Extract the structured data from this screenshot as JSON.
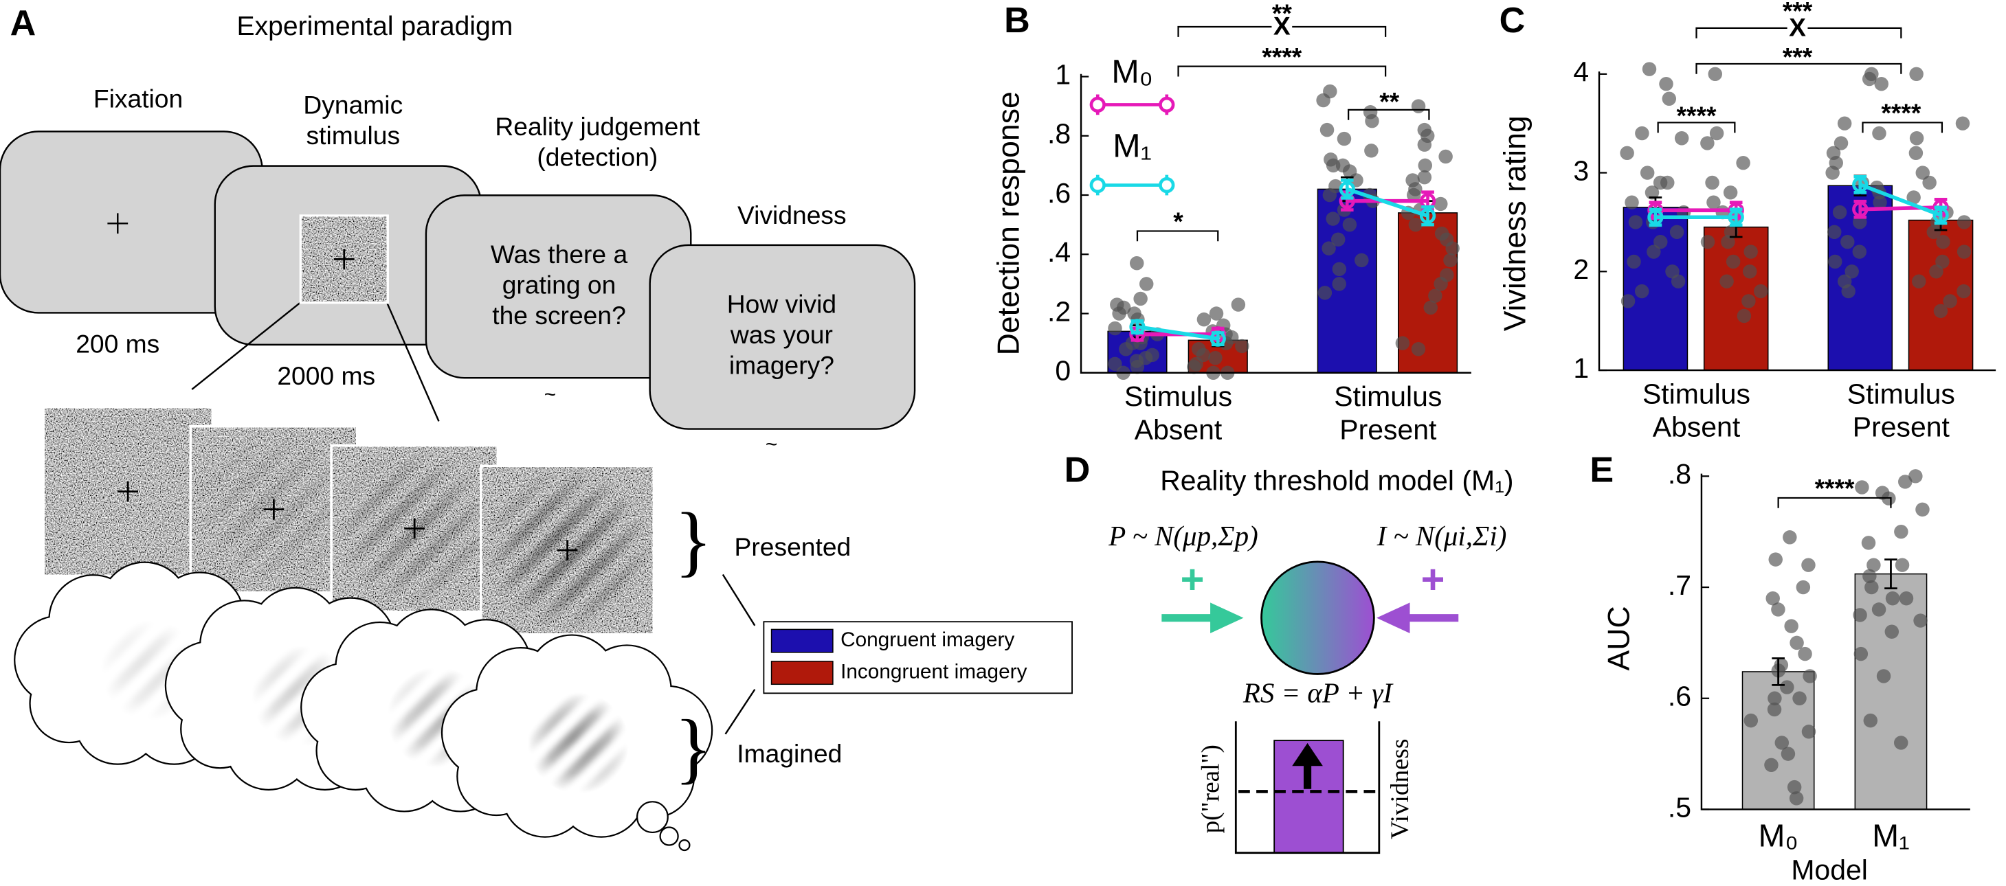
{
  "panel_labels": [
    "A",
    "B",
    "C",
    "D",
    "E"
  ],
  "panel_a": {
    "title": "Experimental paradigm",
    "screens": [
      "Fixation",
      "Dynamic\nstimulus",
      "Reality judgement\n(detection)",
      "Vividness"
    ],
    "questions": [
      "Was there a\ngrating on\nthe screen?",
      "How vivid\nwas your\nimagery?"
    ],
    "durations": [
      "200 ms",
      "2000 ms",
      "~",
      "~"
    ],
    "groups": [
      "}",
      "Presented",
      "}",
      "Imagined"
    ]
  },
  "panel_d": {
    "title": "Reality threshold model (M₁)",
    "perception": "P ~ N(μp,Σp)",
    "imagery": "I ~ N(μi,Σi)",
    "plus": [
      "+",
      "+"
    ],
    "equation": "RS = αP + γI",
    "left_axis": "p(\"real\")",
    "right_axis": "Vividness"
  },
  "chart_data": [
    {
      "type": "bar",
      "y_label": "Detection response",
      "categories": [
        "Stimulus\nAbsent",
        "Stimulus\nPresent"
      ],
      "ylim": [
        0,
        1
      ],
      "yticks": [
        0,
        {
          "value": 0.2,
          "label": ".2"
        },
        {
          "value": 0.4,
          "label": ".4"
        },
        {
          "value": 0.6,
          "label": ".6"
        },
        {
          "value": 0.8,
          "label": ".8"
        },
        1
      ],
      "series": [
        {
          "name": "Congruent imagery",
          "color": "#1c0fae",
          "values": [
            0.14,
            0.62
          ],
          "errors": [
            0.02,
            0.04
          ],
          "points": [
            [
              0.37,
              0.25,
              0.23,
              0.22,
              0.2,
              0.18,
              0.15,
              0.13,
              0.12,
              0.1,
              0.08,
              0.06,
              0.05,
              0.03,
              0.02,
              0,
              0.3,
              0.2,
              0.1,
              0.04
            ],
            [
              0.95,
              0.92,
              0.88,
              0.85,
              0.82,
              0.79,
              0.75,
              0.72,
              0.7,
              0.68,
              0.65,
              0.63,
              0.6,
              0.58,
              0.55,
              0.52,
              0.5,
              0.45,
              0.42,
              0.38,
              0.35,
              0.3,
              0.27,
              0.6,
              0.7
            ]
          ]
        },
        {
          "name": "Incongruent imagery",
          "color": "#b0190b",
          "values": [
            0.11,
            0.54
          ],
          "errors": [
            0.02,
            0.04
          ],
          "points": [
            [
              0.23,
              0.2,
              0.18,
              0.16,
              0.14,
              0.12,
              0.1,
              0.08,
              0.06,
              0.05,
              0.03,
              0.02,
              0,
              0,
              0.13,
              0.09
            ],
            [
              0.9,
              0.82,
              0.8,
              0.77,
              0.73,
              0.7,
              0.66,
              0.62,
              0.6,
              0.57,
              0.54,
              0.5,
              0.47,
              0.45,
              0.42,
              0.38,
              0.33,
              0.3,
              0.26,
              0.22,
              0.1,
              0.08,
              0.55,
              0.65
            ]
          ]
        }
      ],
      "model_series": [
        {
          "name": "M₀",
          "color": "#e619b8",
          "values": [
            0.13,
            0.13,
            0.58,
            0.58
          ],
          "errors": [
            0.02,
            0.02,
            0.03,
            0.03
          ]
        },
        {
          "name": "M₁",
          "color": "#19d9e6",
          "values": [
            0.155,
            0.115,
            0.62,
            0.53
          ],
          "errors": [
            0.02,
            0.02,
            0.03,
            0.03
          ]
        }
      ],
      "annotations": [
        "**",
        "X",
        "****",
        "**",
        "*"
      ]
    },
    {
      "type": "bar",
      "y_label": "Vividness rating",
      "categories": [
        "Stimulus\nAbsent",
        "Stimulus\nPresent"
      ],
      "ylim": [
        1,
        4
      ],
      "yticks": [
        1,
        2,
        3,
        4
      ],
      "series": [
        {
          "name": "Congruent imagery",
          "color": "#1c0fae",
          "values": [
            2.65,
            2.87
          ],
          "errors": [
            0.1,
            0.1
          ],
          "points": [
            [
              4.05,
              3.9,
              3.75,
              3.4,
              3.35,
              3.2,
              3.0,
              2.9,
              2.8,
              2.7,
              2.6,
              2.5,
              2.4,
              2.3,
              2.2,
              2.1,
              2.0,
              1.9,
              1.8,
              1.7,
              2.5,
              2.9
            ],
            [
              4.0,
              3.95,
              3.9,
              3.5,
              3.4,
              3.3,
              3.2,
              3.1,
              3.0,
              2.9,
              2.8,
              2.7,
              2.6,
              2.5,
              2.4,
              2.3,
              2.2,
              2.1,
              2.0,
              1.9,
              1.8,
              2.85
            ]
          ]
        },
        {
          "name": "Incongruent imagery",
          "color": "#b0190b",
          "values": [
            2.45,
            2.52
          ],
          "errors": [
            0.1,
            0.1
          ],
          "points": [
            [
              4.0,
              3.4,
              3.3,
              3.1,
              2.9,
              2.8,
              2.7,
              2.55,
              2.4,
              2.3,
              2.2,
              2.1,
              2.0,
              1.9,
              1.8,
              1.7,
              1.55,
              2.6,
              2.3
            ],
            [
              4.0,
              3.5,
              3.35,
              3.2,
              3.0,
              2.9,
              2.75,
              2.6,
              2.5,
              2.4,
              2.3,
              2.2,
              2.1,
              2.0,
              1.9,
              1.8,
              1.7,
              1.6,
              2.5
            ]
          ]
        }
      ],
      "model_series": [
        {
          "name": "M₀",
          "color": "#e619b8",
          "values": [
            2.62,
            2.62,
            2.63,
            2.65
          ],
          "errors": [
            0.08,
            0.08,
            0.08,
            0.08
          ]
        },
        {
          "name": "M₁",
          "color": "#19d9e6",
          "values": [
            2.55,
            2.55,
            2.88,
            2.57
          ],
          "errors": [
            0.08,
            0.08,
            0.08,
            0.08
          ]
        }
      ],
      "annotations": [
        "***",
        "X",
        "***",
        "****",
        "****"
      ]
    },
    {
      "type": "bar",
      "y_label": "AUC",
      "x_label": "Model",
      "categories": [
        "M₀",
        "M₁"
      ],
      "ylim": [
        0.5,
        0.8
      ],
      "yticks": [
        {
          "value": 0.5,
          "label": ".5"
        },
        {
          "value": 0.6,
          "label": ".6"
        },
        {
          "value": 0.7,
          "label": ".7"
        },
        {
          "value": 0.8,
          "label": ".8"
        }
      ],
      "series": [
        {
          "color": "#b3b3b3",
          "values": [
            0.624,
            0.712
          ],
          "errors": [
            0.012,
            0.013
          ],
          "points": [
            [
              0.745,
              0.725,
              0.72,
              0.7,
              0.69,
              0.68,
              0.665,
              0.65,
              0.64,
              0.63,
              0.62,
              0.61,
              0.6,
              0.59,
              0.58,
              0.57,
              0.56,
              0.55,
              0.54,
              0.52,
              0.51,
              0.625,
              0.6
            ],
            [
              0.8,
              0.795,
              0.79,
              0.785,
              0.78,
              0.77,
              0.75,
              0.74,
              0.72,
              0.71,
              0.7,
              0.69,
              0.68,
              0.675,
              0.67,
              0.66,
              0.64,
              0.62,
              0.58,
              0.56,
              0.72,
              0.69
            ]
          ]
        }
      ],
      "annotations": [
        "****"
      ]
    }
  ]
}
